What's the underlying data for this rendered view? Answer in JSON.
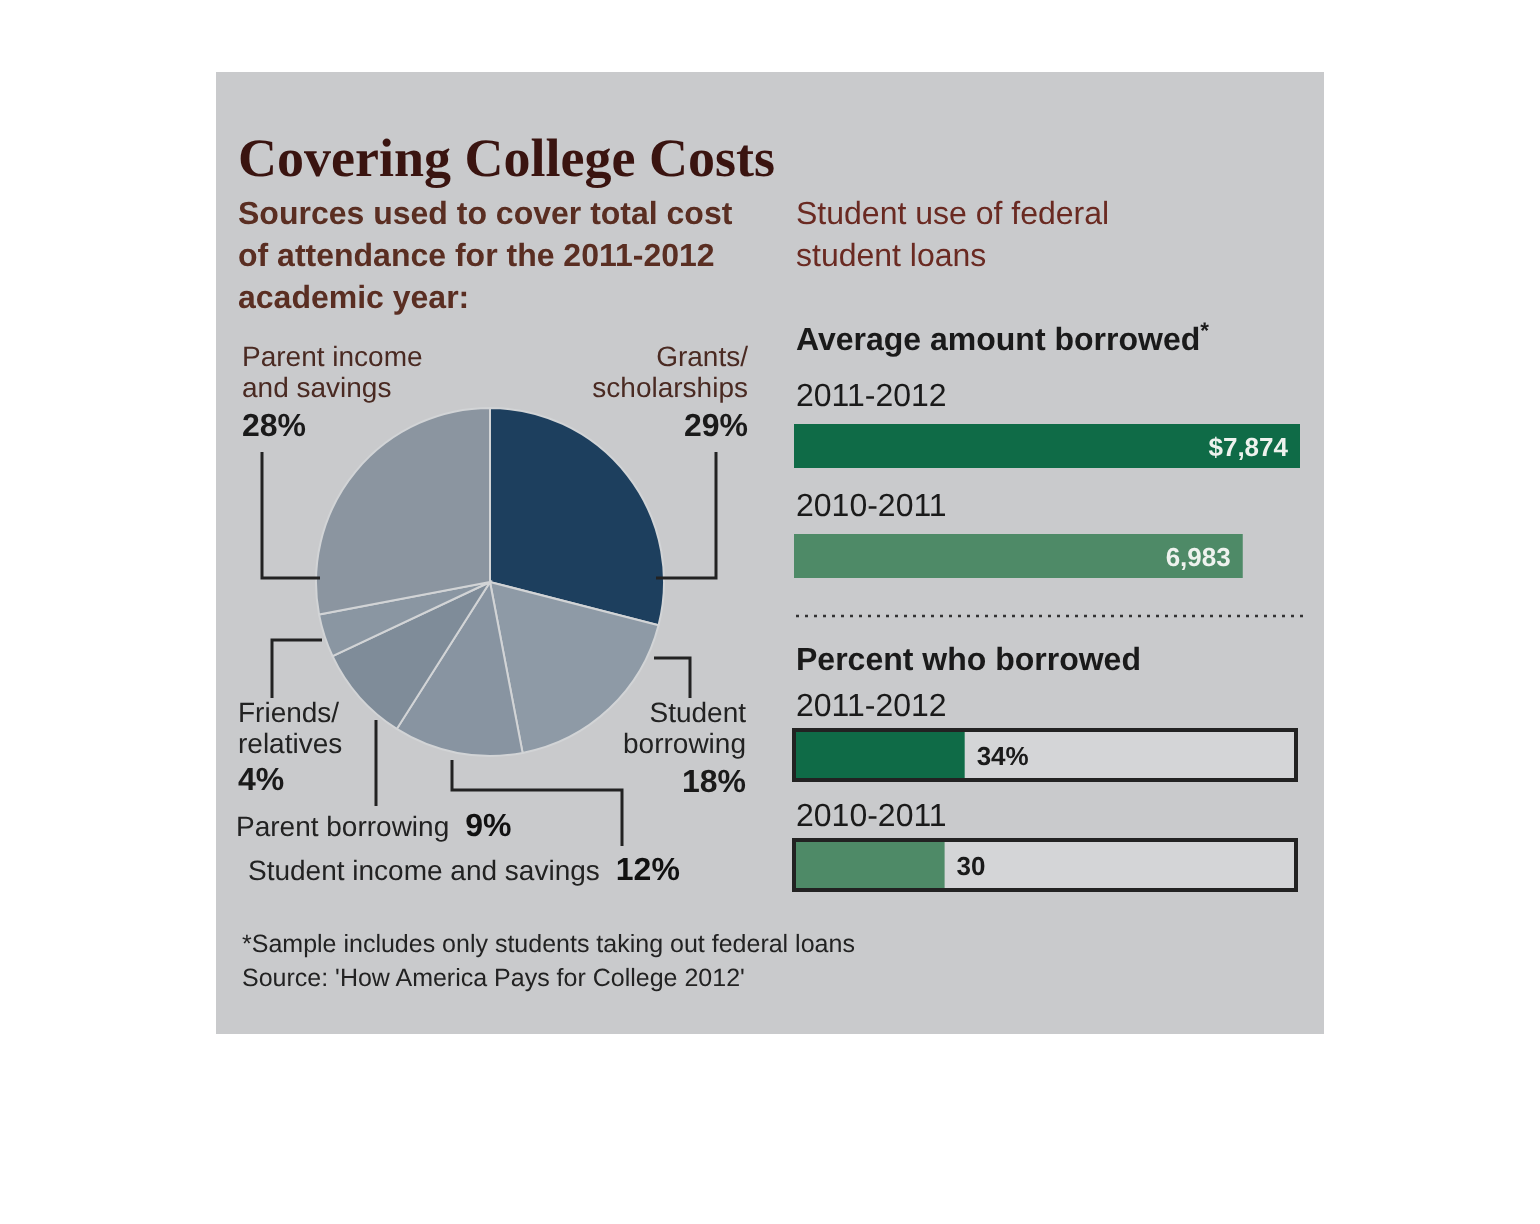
{
  "chart_data": [
    {
      "type": "pie",
      "title": "Covering College Costs",
      "subtitle": "Sources used to cover total cost of attendance for the 2011-2012 academic year:",
      "categories": [
        "Grants/ scholarships",
        "Student borrowing",
        "Student income and savings",
        "Parent borrowing",
        "Friends/ relatives",
        "Parent income and savings"
      ],
      "values": [
        29,
        18,
        12,
        9,
        4,
        28
      ],
      "colors": [
        "#1d3f5e",
        "#8e9aa6",
        "#8894a1",
        "#7f8c99",
        "#8a96a2",
        "#8b95a0"
      ],
      "value_labels": [
        "29%",
        "18%",
        "12%",
        "9%",
        "4%",
        "28%"
      ]
    },
    {
      "type": "bar",
      "orientation": "horizontal",
      "subtitle": "Student use of federal student loans",
      "title": "Average amount borrowed$^{*}$",
      "categories": [
        "2011-2012",
        "2010-2011"
      ],
      "values": [
        7874,
        6983
      ],
      "colors": [
        "#0f6b47",
        "#4e8a67"
      ],
      "value_labels": [
        "$7,874",
        "6,983"
      ]
    },
    {
      "type": "bar",
      "orientation": "horizontal",
      "title": "Percent who borrowed",
      "categories": [
        "2011-2012",
        "2010-2011"
      ],
      "values": [
        34,
        30
      ],
      "colors": [
        "#0f6b47",
        "#4e8a67"
      ],
      "value_labels": [
        "34%",
        "30"
      ],
      "xlim": [
        0,
        100
      ],
      "annotations": [
        "*Sample includes only students taking out federal loans",
        "Source: 'How America Pays for College 2012'"
      ]
    }
  ]
}
